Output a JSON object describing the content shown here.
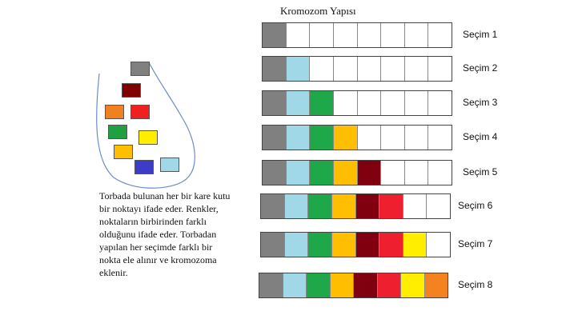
{
  "diagram": {
    "title": "Kromozom Yapısı",
    "bag": {
      "boxes": [
        "#808080",
        "#800000",
        "#f08020",
        "#ee2020",
        "#20a040",
        "#ffee00",
        "#ffbf00",
        "#3c3cc8",
        "#a0d8e8"
      ],
      "description": "Torbada bulunan her bir kare kutu bir noktayı ifade eder. Renkler, noktaların birbirinden farklı olduğunu ifade eder. Torbadan yapılan her seçimde farklı bir nokta ele alınır ve kromozoma eklenir."
    },
    "gene_colors": [
      "#808080",
      "#a0d8e8",
      "#1fa84a",
      "#ffbf00",
      "#800010",
      "#ee2030",
      "#ffee00",
      "#f58220"
    ],
    "cells_per_chromosome": 8,
    "selections": [
      {
        "label": "Seçim 1",
        "filled": 1
      },
      {
        "label": "Seçim 2",
        "filled": 2
      },
      {
        "label": "Seçim 3",
        "filled": 3
      },
      {
        "label": "Seçim 4",
        "filled": 4
      },
      {
        "label": "Seçim 5",
        "filled": 5
      },
      {
        "label": "Seçim 6",
        "filled": 6
      },
      {
        "label": "Seçim 7",
        "filled": 7
      },
      {
        "label": "Seçim 8",
        "filled": 8
      }
    ]
  }
}
